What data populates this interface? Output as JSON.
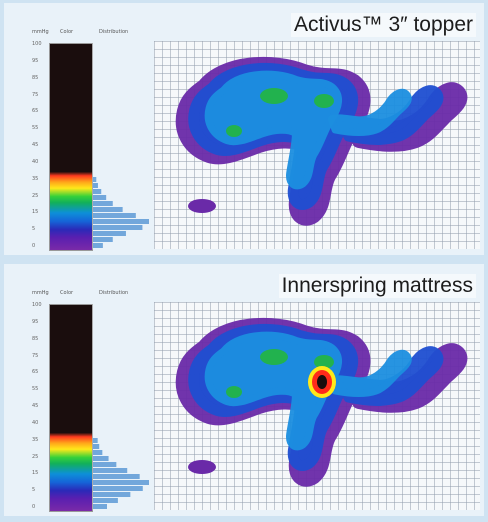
{
  "chart_data": [
    {
      "type": "heatmap",
      "title": "Activus™ 3″ topper",
      "legend_headers": [
        "mmHg",
        "Color",
        "Distribution"
      ],
      "scale_ticks": [
        "100",
        "95",
        "85",
        "75",
        "65",
        "55",
        "45",
        "40",
        "35",
        "25",
        "15",
        "5",
        "0"
      ],
      "distribution": [
        2,
        3,
        5,
        8,
        12,
        18,
        26,
        34,
        30,
        20,
        12,
        6
      ],
      "peak_color": "#2cc24a"
    },
    {
      "type": "heatmap",
      "title": "Innerspring mattress",
      "legend_headers": [
        "mmHg",
        "Color",
        "Distribution"
      ],
      "scale_ticks": [
        "100",
        "95",
        "85",
        "75",
        "65",
        "55",
        "45",
        "40",
        "35",
        "25",
        "15",
        "5",
        "0"
      ],
      "distribution": [
        3,
        4,
        6,
        10,
        15,
        22,
        30,
        36,
        32,
        24,
        16,
        9
      ],
      "peak_color": "#ff2a1a"
    }
  ],
  "colors": {
    "outer": "#6a2aa8",
    "low": "#1f4fd1",
    "mid": "#1c8fe0",
    "high": "#22b24e",
    "alarm": "#ff2a1a",
    "warn": "#ffe81a",
    "core": "#1a0d0d"
  }
}
